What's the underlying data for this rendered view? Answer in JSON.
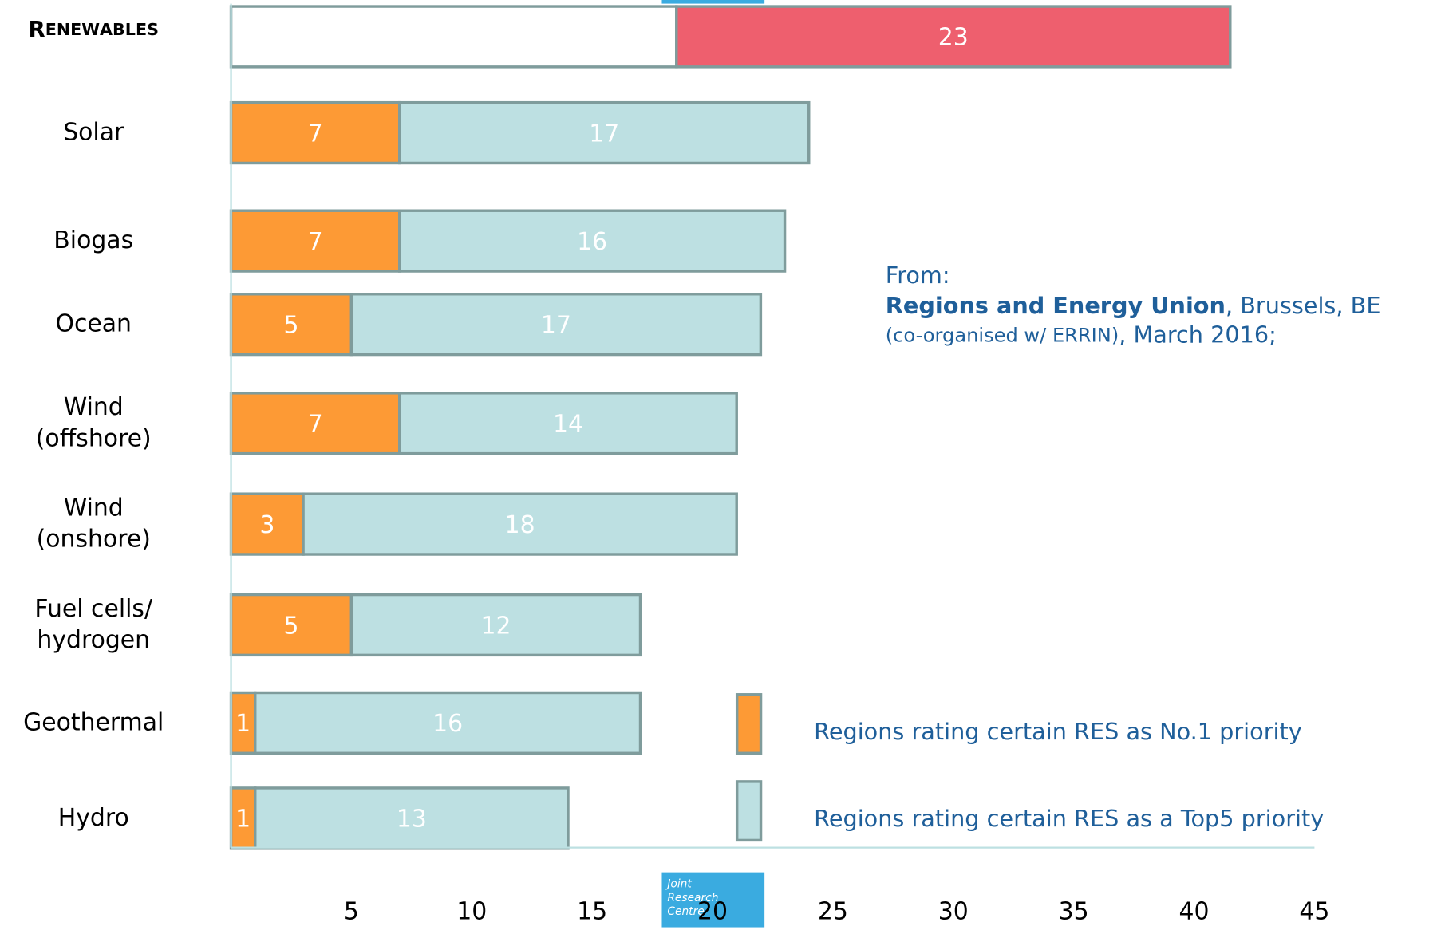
{
  "chart_data": {
    "type": "stacked-barh",
    "categories": [
      "Renewables",
      "Solar",
      "Biogas",
      "Ocean",
      "Wind\n(offshore)",
      "Wind\n(onshore)",
      "Fuel cells/\nhydrogen",
      "Geothermal",
      "Hydro"
    ],
    "series": [
      {
        "name": "Regions rating certain RES as No.1 priority",
        "color": "#fd9a35",
        "colors": [
          "#ffffff",
          "#fd9a35",
          "#fd9a35",
          "#fd9a35",
          "#fd9a35",
          "#fd9a35",
          "#fd9a35",
          "#fd9a35",
          "#fd9a35"
        ],
        "values": [
          18.5,
          7,
          7,
          5,
          7,
          3,
          5,
          1,
          1
        ],
        "value_labels": [
          null,
          "7",
          "7",
          "5",
          "7",
          "3",
          "5",
          "1",
          "1"
        ]
      },
      {
        "name": "Regions rating certain RES as a Top5 priority",
        "color": "#bde0e2",
        "colors": [
          "#ee5f6e",
          "#bde0e2",
          "#bde0e2",
          "#bde0e2",
          "#bde0e2",
          "#bde0e2",
          "#bde0e2",
          "#bde0e2",
          "#bde0e2"
        ],
        "values": [
          23,
          17,
          16,
          17,
          14,
          18,
          12,
          16,
          13
        ]
      }
    ],
    "xlim": [
      0,
      45
    ],
    "xticks": [
      5,
      10,
      15,
      20,
      25,
      30,
      35,
      40,
      45
    ],
    "annotation": {
      "intro": "From:",
      "event": "Regions and Energy Union",
      "place": ", Brussels, BE",
      "organiser": "(co-organised w/ ERRIN)",
      "date": ", March 2016;"
    },
    "logo": [
      "Joint",
      "Research",
      "Centre"
    ]
  }
}
